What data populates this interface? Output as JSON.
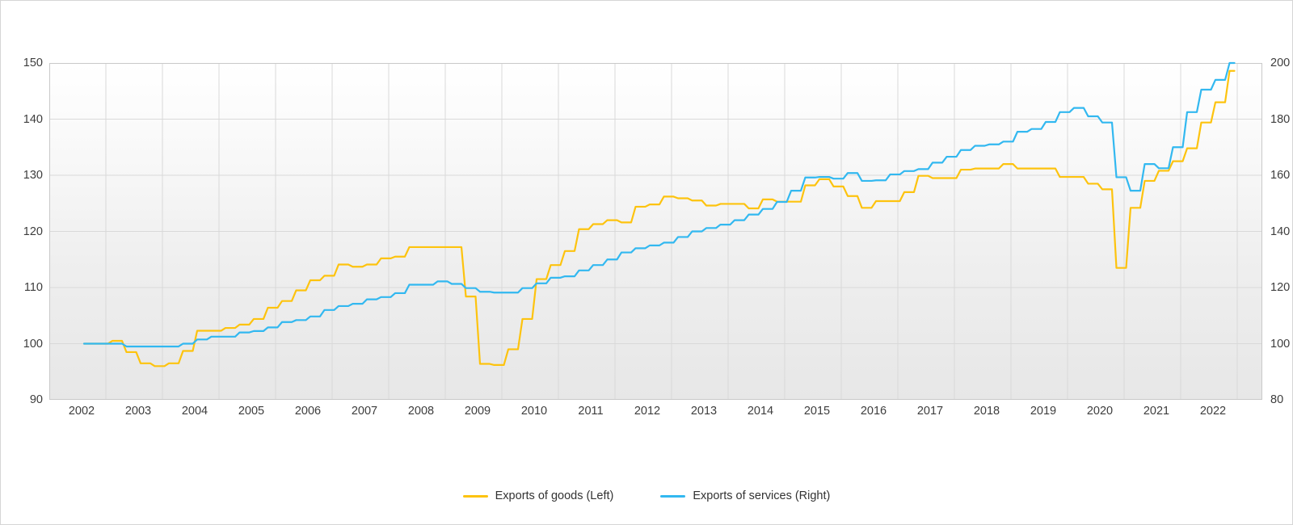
{
  "chart_data": {
    "type": "line",
    "title": "",
    "x_range": {
      "start": "2002-Q1",
      "end": "2022-Q2",
      "frequency": "quarterly"
    },
    "x_tick_labels": [
      "2002",
      "2003",
      "2004",
      "2005",
      "2006",
      "2007",
      "2008",
      "2009",
      "2010",
      "2011",
      "2012",
      "2013",
      "2014",
      "2015",
      "2016",
      "2017",
      "2018",
      "2019",
      "2020",
      "2021",
      "2022"
    ],
    "left_axis": {
      "min": 90,
      "max": 150,
      "ticks": [
        "150",
        "140",
        "130",
        "120",
        "110",
        "100",
        "90"
      ]
    },
    "right_axis": {
      "min": 80,
      "max": 200,
      "ticks": [
        "200",
        "180",
        "160",
        "140",
        "120",
        "100",
        "80"
      ]
    },
    "grid": true,
    "legend_position": "bottom",
    "series": [
      {
        "name": "Exports of goods (Left)",
        "axis": "left",
        "color": "#fdc30e",
        "values": [
          100,
          100,
          100.5,
          98.5,
          96.5,
          96,
          96.5,
          98.7,
          102.3,
          102.3,
          102.8,
          103.4,
          104.4,
          106.4,
          107.6,
          109.5,
          111.3,
          112.1,
          114.1,
          113.7,
          114.1,
          115.2,
          115.5,
          117.2,
          117.2,
          117.2,
          117.2,
          108.4,
          96.4,
          96.2,
          99,
          104.4,
          111.5,
          114,
          116.5,
          120.4,
          121.3,
          122,
          121.6,
          124.4,
          124.8,
          126.2,
          125.9,
          125.5,
          124.6,
          124.9,
          124.9,
          124.1,
          125.7,
          125.3,
          125.3,
          128.2,
          129.3,
          128,
          126.3,
          124.2,
          125.4,
          125.4,
          127,
          129.9,
          129.5,
          129.5,
          131,
          131.2,
          131.2,
          132,
          131.2,
          131.2,
          131.2,
          129.7,
          129.7,
          128.5,
          127.5,
          113.5,
          124.2,
          129,
          130.8,
          132.5,
          134.8,
          139.4,
          143,
          148.6
        ]
      },
      {
        "name": "Exports of services (Right)",
        "axis": "right",
        "color": "#32b8f0",
        "values": [
          100,
          100,
          100,
          99,
          99,
          99,
          99,
          100,
          101.5,
          102.5,
          102.5,
          104,
          104.5,
          105.8,
          107.7,
          108.4,
          109.7,
          112,
          113.4,
          114.2,
          115.8,
          116.6,
          118,
          121,
          121,
          122.2,
          121.3,
          119.8,
          118.5,
          118.2,
          118.2,
          119.8,
          121.5,
          123.5,
          124,
          126.1,
          128,
          130,
          132.5,
          134,
          135,
          136,
          138,
          140,
          141.2,
          142.4,
          144,
          146,
          148,
          150.5,
          154.5,
          159.2,
          159.4,
          158.8,
          160.8,
          158,
          158.2,
          160.3,
          161.5,
          162.2,
          164.5,
          166.6,
          169,
          170.5,
          171,
          172,
          175.5,
          176.5,
          179,
          182.5,
          184,
          181,
          178.8,
          159.3,
          154.5,
          164,
          162.5,
          170,
          182.5,
          190.5,
          194,
          200
        ]
      }
    ]
  }
}
